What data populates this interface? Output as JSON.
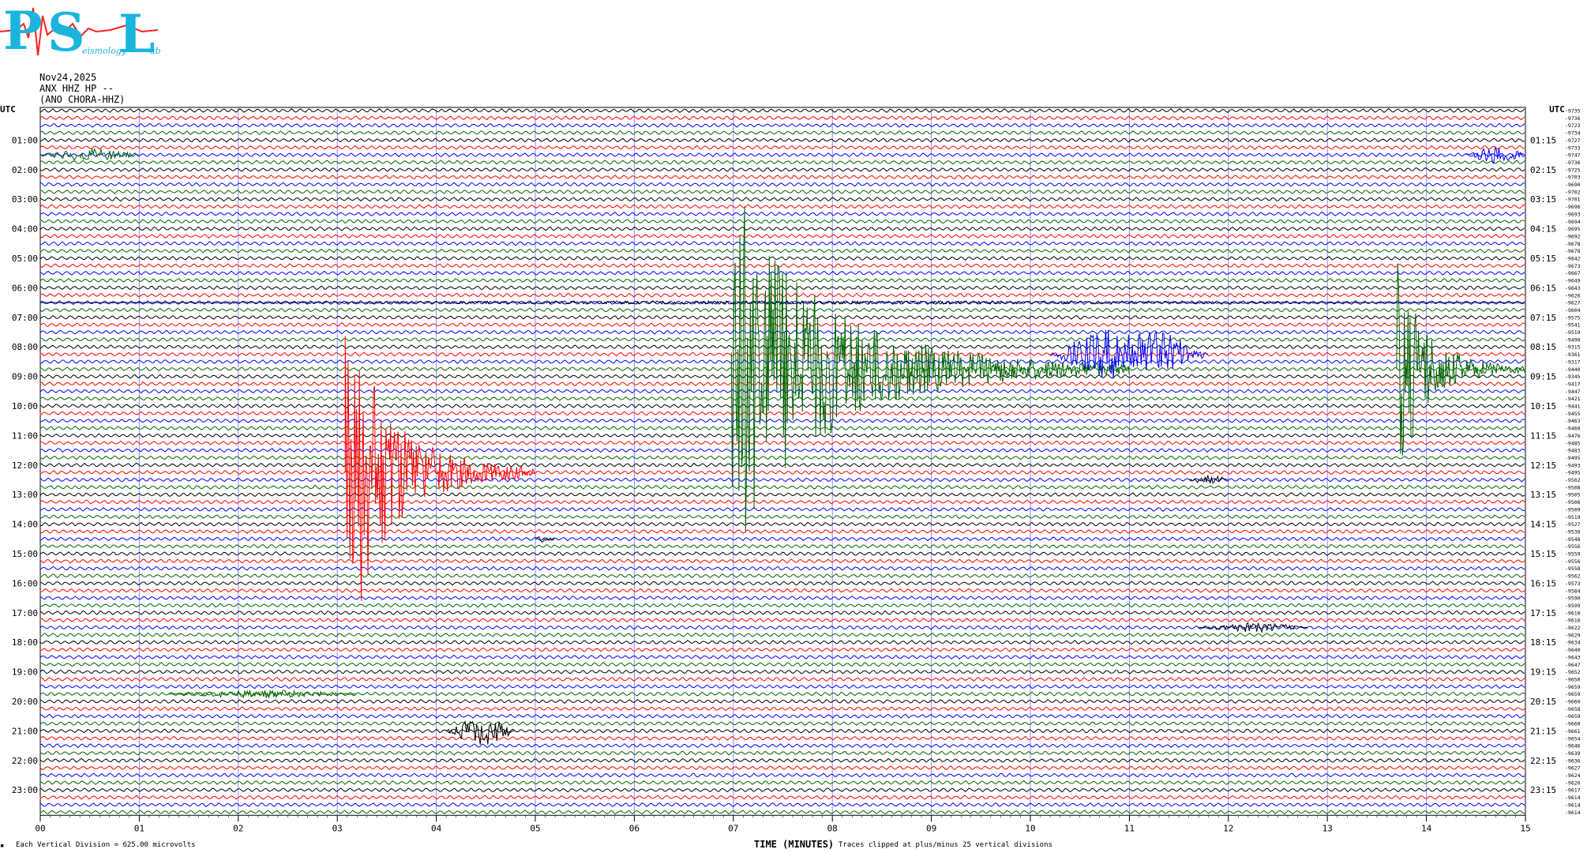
{
  "logo": {
    "p": "P",
    "s": "S",
    "l": "L",
    "eismology": "eismology",
    "ab": "ab"
  },
  "header": {
    "date": "Nov24,2025",
    "station": "ANX HHZ HP --",
    "sub": "(ANO CHORA-HHZ)"
  },
  "footer": {
    "vertical_division": "Each Vertical Division =  625.00 microvolts",
    "clip_note": "Traces clipped at plus/minus 25 vertical divisions"
  },
  "colors": {
    "black": "#000000",
    "red": "#ff0000",
    "blue": "#0000ff",
    "green": "#006400",
    "grid": "#8a8aff",
    "logo": "#1ab5dc"
  },
  "chart_data": {
    "type": "line",
    "xlabel": "TIME (MINUTES)",
    "xlim": [
      0,
      15
    ],
    "x_ticks": [
      "00",
      "01",
      "02",
      "03",
      "04",
      "05",
      "06",
      "07",
      "08",
      "09",
      "10",
      "11",
      "12",
      "13",
      "14",
      "15"
    ],
    "left_axis_title": "UTC",
    "right_axis_title": "UTC",
    "left_labels": [
      "01:00",
      "02:00",
      "03:00",
      "04:00",
      "05:00",
      "06:00",
      "07:00",
      "08:00",
      "09:00",
      "10:00",
      "11:00",
      "12:00",
      "13:00",
      "14:00",
      "15:00",
      "16:00",
      "17:00",
      "18:00",
      "19:00",
      "20:00",
      "21:00",
      "22:00",
      "23:00"
    ],
    "right_labels": [
      "01:15",
      "02:15",
      "03:15",
      "04:15",
      "05:15",
      "06:15",
      "07:15",
      "08:15",
      "09:15",
      "10:15",
      "11:15",
      "12:15",
      "13:15",
      "14:15",
      "15:15",
      "16:15",
      "17:15",
      "18:15",
      "19:15",
      "20:15",
      "21:15",
      "22:15",
      "23:15"
    ],
    "trace_color_cycle": [
      "black",
      "red",
      "blue",
      "green"
    ],
    "trace_count": 96,
    "trace_offsets": [
      "-9735",
      "-9736",
      "-9723",
      "-9734",
      "-9727",
      "-9733",
      "-9747",
      "-9736",
      "-9725",
      "-9703",
      "-9690",
      "-9702",
      "-9701",
      "-9696",
      "-9693",
      "-9694",
      "-9695",
      "-9692",
      "-9678",
      "-9678",
      "-9642",
      "-9673",
      "-9667",
      "-9649",
      "-9643",
      "-9626",
      "-9627",
      "-9604",
      "-9575",
      "-9541",
      "-9519",
      "-9490",
      "-9315",
      "-9361",
      "-9317",
      "-9440",
      "-9345",
      "-9417",
      "-9447",
      "-9421",
      "-9441",
      "-9455",
      "-9463",
      "-9460",
      "-9476",
      "-9485",
      "-9483",
      "-9495",
      "-9493",
      "-9495",
      "-9502",
      "-9508",
      "-9505",
      "-9506",
      "-9509",
      "-9519",
      "-9527",
      "-9538",
      "-9548",
      "-9556",
      "-9559",
      "-9556",
      "-9558",
      "-9562",
      "-9573",
      "-9584",
      "-9590",
      "-9599",
      "-9610",
      "-9616",
      "-9622",
      "-9629",
      "-9634",
      "-9640",
      "-9643",
      "-9647",
      "-9652",
      "-9650",
      "-9659",
      "-9659",
      "-9660",
      "-9658",
      "-9659",
      "-9660",
      "-9661",
      "-9654",
      "-9646",
      "-9639",
      "-9636",
      "-9627",
      "-9624",
      "-9620",
      "-9617",
      "-9614",
      "-9614",
      "-9614"
    ],
    "events": [
      {
        "trace": 6,
        "start_min": 0.0,
        "end_min": 1.0,
        "amp": 8,
        "color": "green"
      },
      {
        "trace": 6,
        "start_min": 14.4,
        "end_min": 15.0,
        "amp": 12,
        "color": "blue"
      },
      {
        "trace": 26,
        "start_min": 0.0,
        "end_min": 15.0,
        "amp": 2,
        "color": "black"
      },
      {
        "trace": 35,
        "start_min": 6.98,
        "end_min": 11.0,
        "amp": 250,
        "color": "green"
      },
      {
        "trace": 33,
        "start_min": 10.2,
        "end_min": 11.8,
        "amp": 35,
        "color": "blue"
      },
      {
        "trace": 35,
        "start_min": 13.7,
        "end_min": 15.0,
        "amp": 150,
        "color": "green"
      },
      {
        "trace": 49,
        "start_min": 3.08,
        "end_min": 5.0,
        "amp": 240,
        "color": "red"
      },
      {
        "trace": 50,
        "start_min": 11.6,
        "end_min": 12.0,
        "amp": 6,
        "color": "black"
      },
      {
        "trace": 58,
        "start_min": 5.0,
        "end_min": 5.2,
        "amp": 5,
        "color": "black"
      },
      {
        "trace": 84,
        "start_min": 4.1,
        "end_min": 4.8,
        "amp": 18,
        "color": "black"
      },
      {
        "trace": 70,
        "start_min": 11.7,
        "end_min": 12.8,
        "amp": 6,
        "color": "black"
      },
      {
        "trace": 79,
        "start_min": 1.3,
        "end_min": 3.2,
        "amp": 5,
        "color": "green"
      }
    ],
    "grid": true
  }
}
